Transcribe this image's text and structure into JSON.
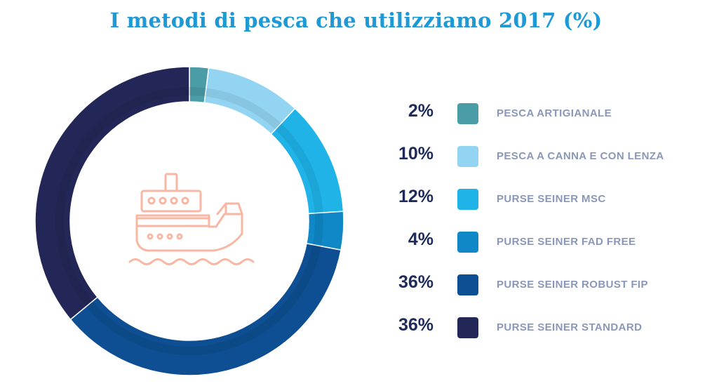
{
  "chart_data": {
    "type": "pie",
    "title": "I metodi di pesca che utilizziamo 2017 (%)",
    "slices": [
      {
        "label": "PESCA ARTIGIANALE",
        "value": 2,
        "display": "2%",
        "color": "#4a9ca7"
      },
      {
        "label": "PESCA A CANNA E CON LENZA",
        "value": 10,
        "display": "10%",
        "color": "#93d4f2"
      },
      {
        "label": "PURSE SEINER MSC",
        "value": 12,
        "display": "12%",
        "color": "#1fb3e8"
      },
      {
        "label": "PURSE SEINER FAD FREE",
        "value": 4,
        "display": "4%",
        "color": "#1088c8"
      },
      {
        "label": "PURSE SEINER ROBUST FIP",
        "value": 36,
        "display": "36%",
        "color": "#0d4f92"
      },
      {
        "label": "PURSE SEINER STANDARD",
        "value": 36,
        "display": "36%",
        "color": "#222757"
      }
    ],
    "legend_position": "right"
  },
  "center_icon": {
    "name": "ship-icon",
    "color": "#f7b7a3"
  },
  "colors": {
    "title": "#1d9ad6",
    "percent_text": "#1e2a5a",
    "label_text": "#8a97b8"
  }
}
